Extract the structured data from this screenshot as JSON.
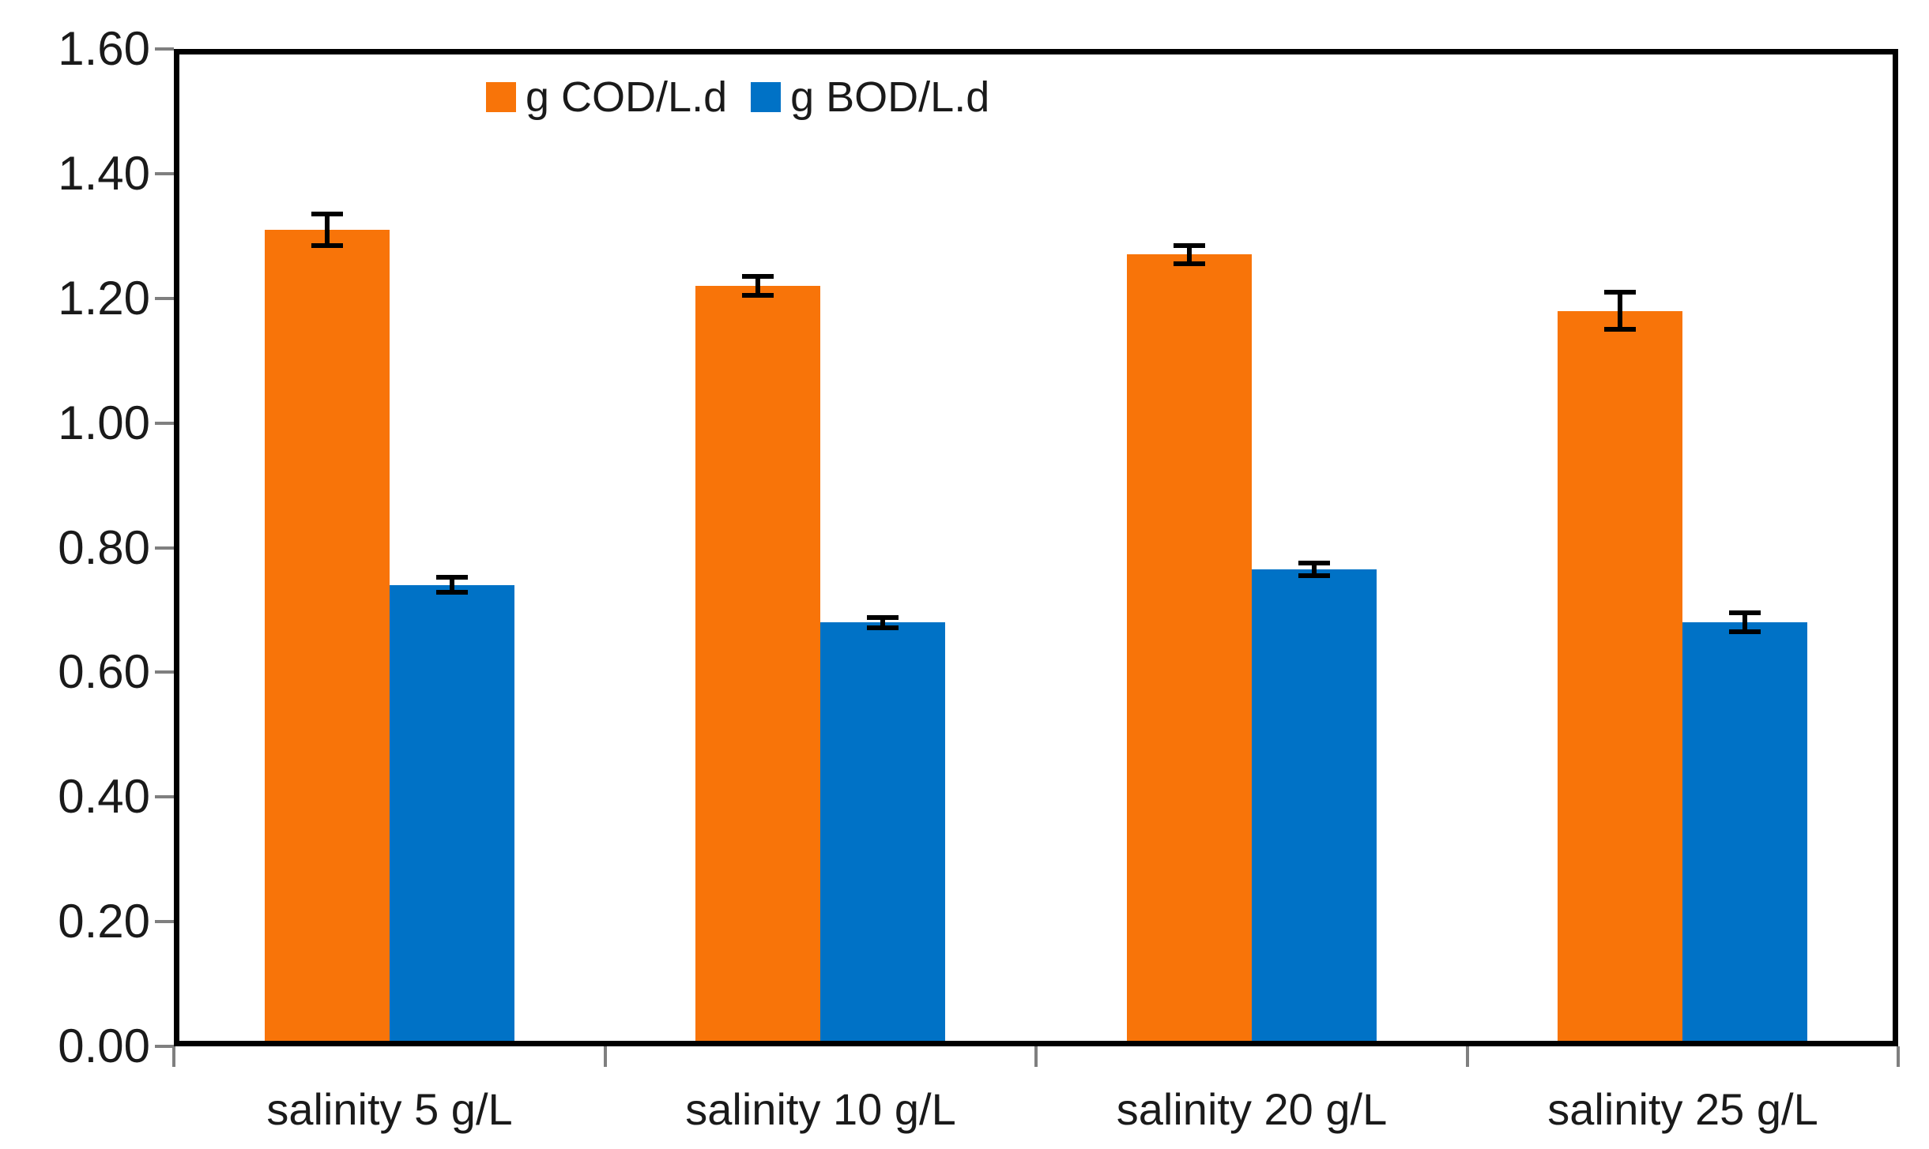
{
  "chart_data": {
    "type": "bar",
    "title": "",
    "xlabel": "",
    "ylabel": "",
    "categories": [
      "salinity 5 g/L",
      "salinity 10 g/L",
      "salinity 20 g/L",
      "salinity 25 g/L"
    ],
    "series": [
      {
        "name": "g COD/L.d",
        "color": "#F87409",
        "values": [
          1.31,
          1.22,
          1.27,
          1.18
        ],
        "errors": [
          0.025,
          0.015,
          0.015,
          0.03
        ]
      },
      {
        "name": "g BOD/L.d",
        "color": "#0072C6",
        "values": [
          0.74,
          0.68,
          0.765,
          0.68
        ],
        "errors": [
          0.012,
          0.008,
          0.01,
          0.015
        ]
      }
    ],
    "ylim": [
      0,
      1.6
    ],
    "ytick_step": 0.2,
    "ytick_labels": [
      "0.00",
      "0.20",
      "0.40",
      "0.60",
      "0.80",
      "1.00",
      "1.20",
      "1.40",
      "1.60"
    ],
    "grid": false,
    "error_bars": true,
    "legend_position": "top-center-inside",
    "frame_color": "#000000",
    "tick_color": "#7f7f7f"
  }
}
